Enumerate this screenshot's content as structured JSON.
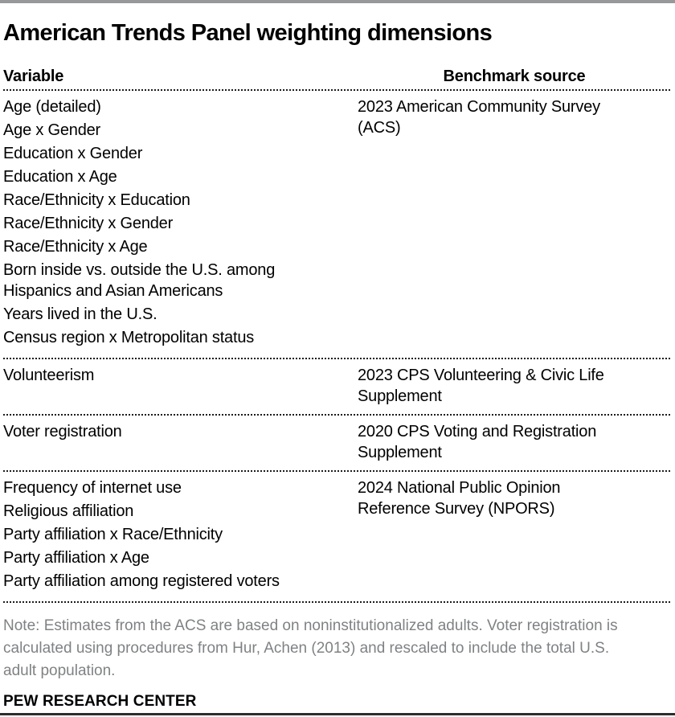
{
  "title": "American Trends Panel weighting dimensions",
  "table": {
    "columns": {
      "variable": "Variable",
      "benchmark": "Benchmark source"
    },
    "sections": [
      {
        "variables": [
          "Age (detailed)",
          "Age x Gender",
          "Education x Gender",
          "Education x Age",
          "Race/Ethnicity x Education",
          "Race/Ethnicity x Gender",
          "Race/Ethnicity x Age",
          "Born inside vs. outside the U.S. among Hispanics and Asian Americans",
          "Years lived in the U.S.",
          "Census region x Metropolitan status"
        ],
        "benchmark": "2023 American Community Survey (ACS)"
      },
      {
        "variables": [
          "Volunteerism"
        ],
        "benchmark": "2023 CPS Volunteering & Civic Life Supplement"
      },
      {
        "variables": [
          "Voter registration"
        ],
        "benchmark": "2020 CPS Voting and Registration Supplement"
      },
      {
        "variables": [
          "Frequency of internet use",
          "Religious affiliation",
          "Party affiliation x Race/Ethnicity",
          "Party affiliation x Age",
          "Party affiliation among registered voters"
        ],
        "benchmark": "2024 National Public Opinion Reference Survey (NPORS)"
      }
    ]
  },
  "note": "Note: Estimates from the ACS are based on noninstitutionalized adults. Voter registration is calculated using procedures from Hur, Achen (2013) and rescaled to include the total U.S. adult population.",
  "footer": "PEW RESEARCH CENTER",
  "colors": {
    "top_bar": "#96989a",
    "bottom_bar": "#2c2d2e",
    "text": "#000000",
    "note_text": "#7f8284"
  },
  "chart_data": {
    "type": "table",
    "title": "American Trends Panel weighting dimensions",
    "columns": [
      "Variable",
      "Benchmark source"
    ],
    "rows": [
      [
        "Age (detailed)",
        "2023 American Community Survey (ACS)"
      ],
      [
        "Age x Gender",
        "2023 American Community Survey (ACS)"
      ],
      [
        "Education x Gender",
        "2023 American Community Survey (ACS)"
      ],
      [
        "Education x Age",
        "2023 American Community Survey (ACS)"
      ],
      [
        "Race/Ethnicity x Education",
        "2023 American Community Survey (ACS)"
      ],
      [
        "Race/Ethnicity x Gender",
        "2023 American Community Survey (ACS)"
      ],
      [
        "Race/Ethnicity x Age",
        "2023 American Community Survey (ACS)"
      ],
      [
        "Born inside vs. outside the U.S. among Hispanics and Asian Americans",
        "2023 American Community Survey (ACS)"
      ],
      [
        "Years lived in the U.S.",
        "2023 American Community Survey (ACS)"
      ],
      [
        "Census region x Metropolitan status",
        "2023 American Community Survey (ACS)"
      ],
      [
        "Volunteerism",
        "2023 CPS Volunteering & Civic Life Supplement"
      ],
      [
        "Voter registration",
        "2020 CPS Voting and Registration Supplement"
      ],
      [
        "Frequency of internet use",
        "2024 National Public Opinion Reference Survey (NPORS)"
      ],
      [
        "Religious affiliation",
        "2024 National Public Opinion Reference Survey (NPORS)"
      ],
      [
        "Party affiliation x Race/Ethnicity",
        "2024 National Public Opinion Reference Survey (NPORS)"
      ],
      [
        "Party affiliation x Age",
        "2024 National Public Opinion Reference Survey (NPORS)"
      ],
      [
        "Party affiliation among registered voters",
        "2024 National Public Opinion Reference Survey (NPORS)"
      ]
    ],
    "notes": "Dashed horizontal rules separate benchmark-source groups; gray bar at top, dark bar at bottom (Pew Research Center figure style)."
  }
}
